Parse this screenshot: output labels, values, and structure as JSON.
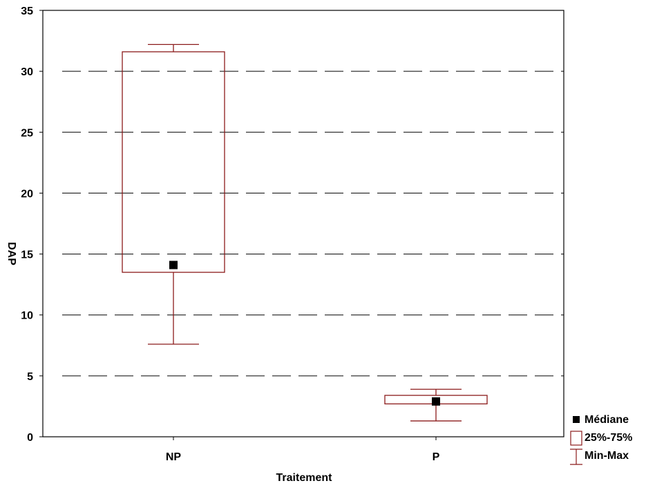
{
  "chart_data": {
    "type": "box",
    "xlabel": "Traitement",
    "ylabel": "DAP",
    "ylim": [
      0,
      35
    ],
    "yticks": [
      0,
      5,
      10,
      15,
      20,
      25,
      30,
      35
    ],
    "grid": "dashed horizontal",
    "legend_position": "bottom-right",
    "categories": [
      "NP",
      "P"
    ],
    "boxes": [
      {
        "category": "NP",
        "min": 7.6,
        "q1": 13.5,
        "median": 14.1,
        "q3": 31.6,
        "max": 32.2
      },
      {
        "category": "P",
        "min": 1.3,
        "q1": 2.7,
        "median": 2.9,
        "q3": 3.4,
        "max": 3.9
      }
    ],
    "legend": [
      {
        "label": "Médiane",
        "symbol": "median-square"
      },
      {
        "label": "25%-75%",
        "symbol": "box"
      },
      {
        "label": "Min-Max",
        "symbol": "whisker"
      }
    ],
    "colors": {
      "box": "#8b1a1a",
      "median": "#000000",
      "grid": "#000000",
      "axis": "#000000"
    }
  }
}
